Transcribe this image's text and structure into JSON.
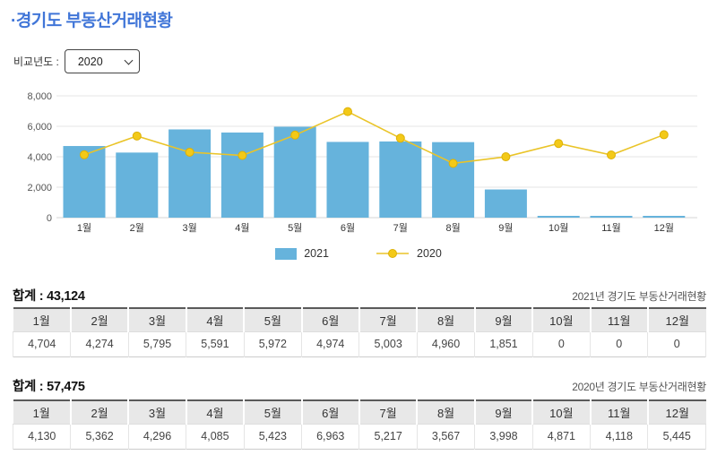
{
  "page": {
    "title": "·경기도 부동산거래현황"
  },
  "controls": {
    "compare_year_label": "비교년도 :",
    "compare_year_value": "2020"
  },
  "colors": {
    "title": "#4176d8",
    "bar_2021": "#66b3dc",
    "line_2020": "#eac428",
    "dot_2020": "#f3c918",
    "dot_stroke": "#ddb106",
    "grid": "#e6e6e6",
    "table_header_bg": "#e8e8e8"
  },
  "chart_data": {
    "type": "bar",
    "categories": [
      "1월",
      "2월",
      "3월",
      "4월",
      "5월",
      "6월",
      "7월",
      "8월",
      "9월",
      "10월",
      "11월",
      "12월"
    ],
    "series": [
      {
        "name": "2021",
        "type": "bar",
        "color": "#66b3dc",
        "values": [
          4704,
          4274,
          5795,
          5591,
          5972,
          4974,
          5003,
          4960,
          1851,
          0,
          0,
          0
        ]
      },
      {
        "name": "2020",
        "type": "line",
        "color": "#eac428",
        "values": [
          4130,
          5362,
          4296,
          4085,
          5423,
          6963,
          5217,
          3567,
          3998,
          4871,
          4118,
          5445
        ]
      }
    ],
    "title": "",
    "xlabel": "",
    "ylabel": "",
    "ylim": [
      0,
      8000
    ],
    "yticks": [
      0,
      2000,
      4000,
      6000,
      8000
    ],
    "ytick_labels": [
      "0",
      "2,000",
      "4,000",
      "6,000",
      "8,000"
    ],
    "grid": true,
    "legend_position": "bottom"
  },
  "table_2021": {
    "total_text": "합계 : 43,124",
    "caption": "2021년 경기도 부동산거래현황",
    "headers": [
      "1월",
      "2월",
      "3월",
      "4월",
      "5월",
      "6월",
      "7월",
      "8월",
      "9월",
      "10월",
      "11월",
      "12월"
    ],
    "values": [
      "4,704",
      "4,274",
      "5,795",
      "5,591",
      "5,972",
      "4,974",
      "5,003",
      "4,960",
      "1,851",
      "0",
      "0",
      "0"
    ]
  },
  "table_2020": {
    "total_text": "합계 : 57,475",
    "caption": "2020년 경기도 부동산거래현황",
    "headers": [
      "1월",
      "2월",
      "3월",
      "4월",
      "5월",
      "6월",
      "7월",
      "8월",
      "9월",
      "10월",
      "11월",
      "12월"
    ],
    "values": [
      "4,130",
      "5,362",
      "4,296",
      "4,085",
      "5,423",
      "6,963",
      "5,217",
      "3,567",
      "3,998",
      "4,871",
      "4,118",
      "5,445"
    ]
  }
}
